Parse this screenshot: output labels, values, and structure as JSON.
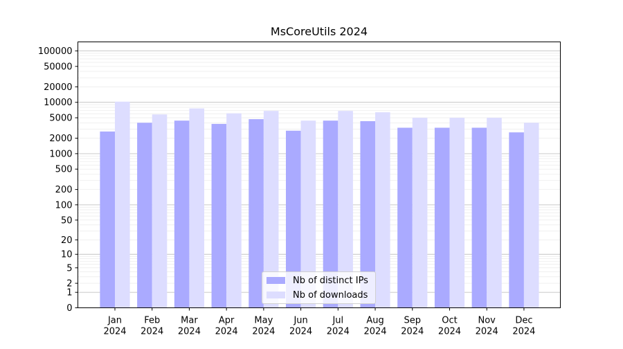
{
  "chart_data": {
    "type": "bar",
    "title": "MsCoreUtils 2024",
    "xlabel": "",
    "ylabel": "",
    "yscale": "symlog",
    "ylim": [
      0,
      150000
    ],
    "yticks": [
      "0",
      "1",
      "2",
      "5",
      "10",
      "20",
      "50",
      "100",
      "200",
      "500",
      "1000",
      "2000",
      "5000",
      "10000",
      "20000",
      "50000",
      "100000"
    ],
    "categories": [
      "Jan\n2024",
      "Feb\n2024",
      "Mar\n2024",
      "Apr\n2024",
      "May\n2024",
      "Jun\n2024",
      "Jul\n2024",
      "Aug\n2024",
      "Sep\n2024",
      "Oct\n2024",
      "Nov\n2024",
      "Dec\n2024"
    ],
    "month_labels": [
      "Jan",
      "Feb",
      "Mar",
      "Apr",
      "May",
      "Jun",
      "Jul",
      "Aug",
      "Sep",
      "Oct",
      "Nov",
      "Dec"
    ],
    "year_label": "2024",
    "grid": true,
    "legend_position": "bottom-center",
    "series": [
      {
        "name": "Nb of distinct IPs",
        "color": "#aaaaff",
        "values": [
          2700,
          4000,
          4400,
          3800,
          4700,
          2800,
          4400,
          4300,
          3200,
          3200,
          3200,
          2600
        ]
      },
      {
        "name": "Nb of downloads",
        "color": "#ddddff",
        "values": [
          10300,
          5800,
          7600,
          6100,
          6800,
          4400,
          6800,
          6400,
          5000,
          5000,
          5000,
          4000
        ]
      }
    ]
  }
}
